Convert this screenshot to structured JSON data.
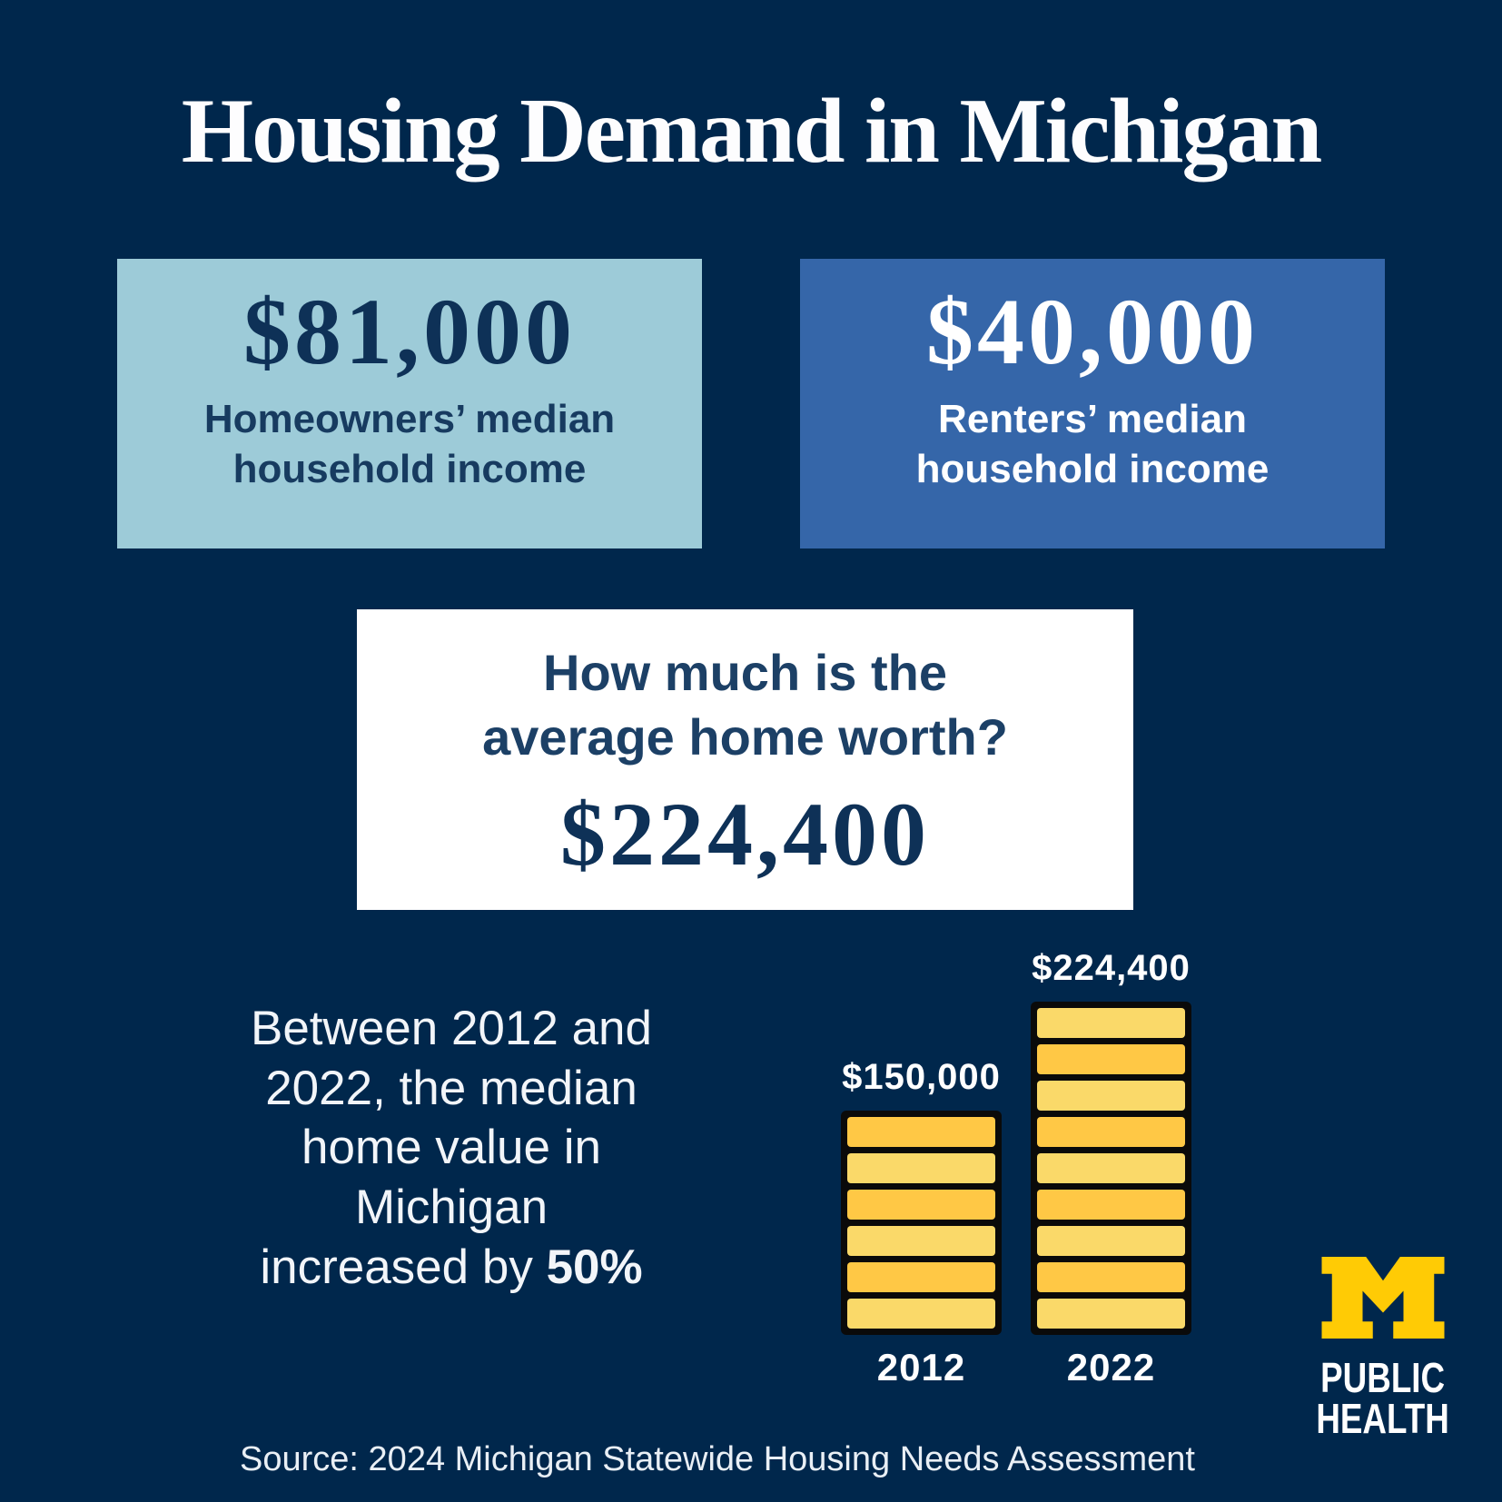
{
  "title": "Housing Demand in Michigan",
  "colors": {
    "background_navy": "#00274C",
    "light_blue_box": "#9DCBD8",
    "blue_box": "#3566A9",
    "white_box": "#FFFFFF",
    "navy_text": "#0E3157",
    "maize": "#FFCB05",
    "coin_dark": "#FFC845",
    "coin_light": "#FAD969"
  },
  "stat_boxes": [
    {
      "value": "$81,000",
      "label": "Homeowners’ median household income"
    },
    {
      "value": "$40,000",
      "label": "Renters’ median household income"
    }
  ],
  "question_box": {
    "question": "How much is the average home worth?",
    "value": "$224,400"
  },
  "callout": {
    "lines": [
      "Between 2012 and",
      "2022, the median",
      "home value in",
      "Michigan",
      "increased by"
    ],
    "highlight": "50%"
  },
  "chart_data": {
    "type": "bar",
    "title": "Median home value in Michigan, 2012 vs 2022",
    "categories": [
      "2012",
      "2022"
    ],
    "values": [
      150000,
      224400
    ],
    "value_labels": [
      "$150,000",
      "$224,400"
    ],
    "coin_counts": [
      6,
      9
    ],
    "coin_colors": {
      "dark": "#FFC845",
      "light": "#FAD969"
    },
    "ylim": [
      0,
      224400
    ],
    "grid": false,
    "legend": "none"
  },
  "logo": {
    "icon": "block-m-icon",
    "line1": "PUBLIC",
    "line2": "HEALTH"
  },
  "source": "Source: 2024 Michigan Statewide Housing Needs Assessment"
}
